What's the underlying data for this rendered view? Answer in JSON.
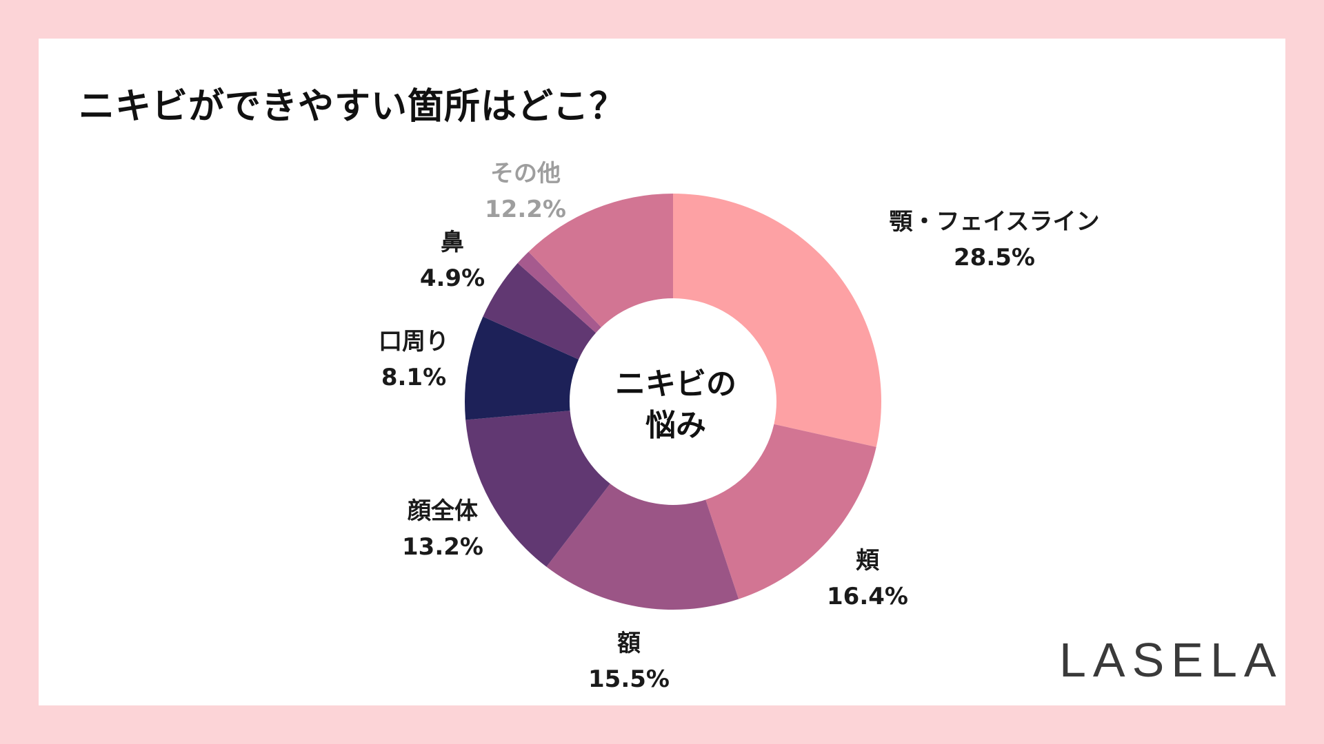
{
  "title": "ニキビができやすい箇所はどこ？",
  "center_label": {
    "line1": "ニキビの",
    "line2": "悩み"
  },
  "logo": "LASELA",
  "colors": {
    "background": "#fcd4d7",
    "card": "#ffffff",
    "muted_label": "#9e9e9e"
  },
  "chart_data": {
    "type": "pie",
    "donut": true,
    "title": "ニキビができやすい箇所はどこ？",
    "center_text": "ニキビの悩み",
    "slices": [
      {
        "label": "顎・フェイスライン",
        "value": 28.5,
        "value_label": "28.5%",
        "color": "#fda1a4"
      },
      {
        "label": "頬",
        "value": 16.4,
        "value_label": "16.4%",
        "color": "#d27593"
      },
      {
        "label": "額",
        "value": 15.5,
        "value_label": "15.5%",
        "color": "#9b5586"
      },
      {
        "label": "顔全体",
        "value": 13.2,
        "value_label": "13.2%",
        "color": "#613872"
      },
      {
        "label": "口周り",
        "value": 8.1,
        "value_label": "8.1%",
        "color": "#1d2158"
      },
      {
        "label": "鼻",
        "value": 4.9,
        "value_label": "4.9%",
        "color": "#613872"
      },
      {
        "label": "",
        "value": 1.2,
        "value_label": "",
        "color": "#a65a8e"
      },
      {
        "label": "その他",
        "value": 12.2,
        "value_label": "12.2%",
        "color": "#d27593",
        "muted": true
      }
    ]
  }
}
